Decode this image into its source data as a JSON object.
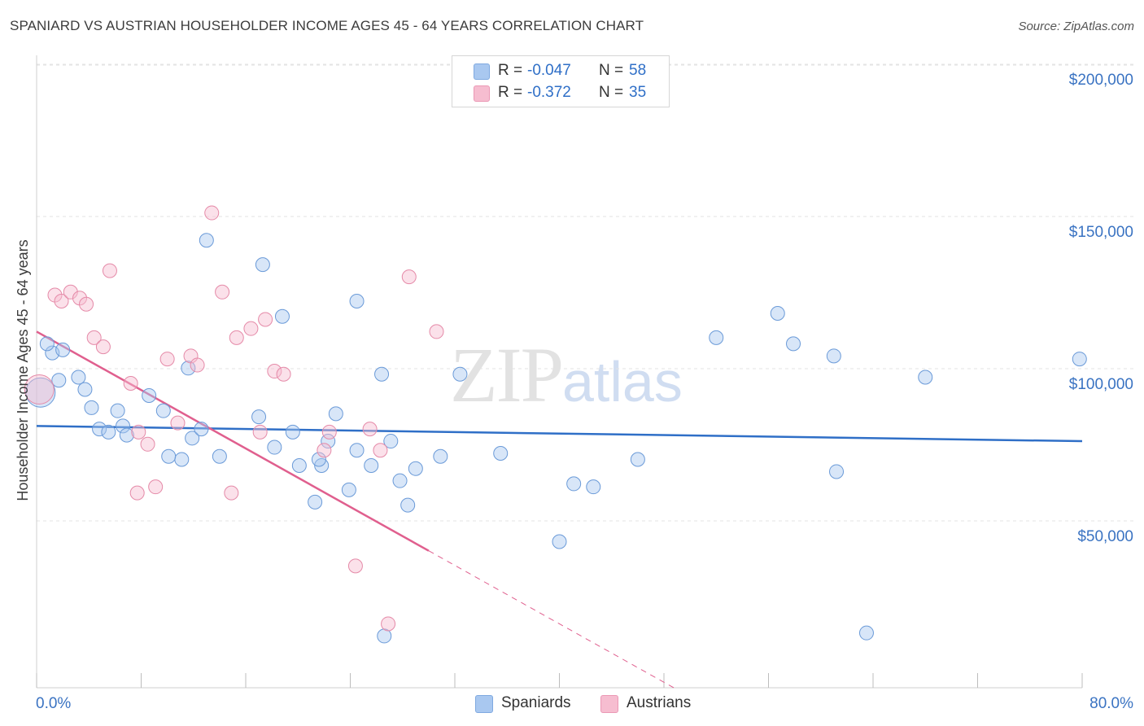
{
  "title": "SPANIARD VS AUSTRIAN HOUSEHOLDER INCOME AGES 45 - 64 YEARS CORRELATION CHART",
  "source": "Source: ZipAtlas.com",
  "watermark": {
    "zip": "ZIP",
    "atlas": "atlas"
  },
  "legend_top": [
    {
      "r_label": "R =",
      "r_value": "-0.047",
      "n_label": "N =",
      "n_value": "58",
      "color": "#a9c8f0"
    },
    {
      "r_label": "R =",
      "r_value": "-0.372",
      "n_label": "N =",
      "n_value": "35",
      "color": "#f6bdd0"
    }
  ],
  "legend_bottom": [
    {
      "label": "Spaniards",
      "color": "#a9c8f0"
    },
    {
      "label": "Austrians",
      "color": "#f6bdd0"
    }
  ],
  "colors": {
    "spaniards_fill": "rgba(169,200,240,0.45)",
    "spaniards_stroke": "#6a9ad8",
    "spaniards_line": "#2f6fc7",
    "austrians_fill": "rgba(246,189,208,0.45)",
    "austrians_stroke": "#e58aa8",
    "austrians_line": "#e05f8e",
    "grid": "#e3e3e3",
    "tick_text": "#3a73c2"
  },
  "chart_data": {
    "type": "scatter",
    "title": "SPANIARD VS AUSTRIAN HOUSEHOLDER INCOME AGES 45 - 64 YEARS CORRELATION CHART",
    "xlabel": "",
    "ylabel": "Householder Income Ages 45 - 64 years",
    "xlim": [
      0,
      80
    ],
    "ylim": [
      0,
      200000
    ],
    "x_tick_labels": [
      "0.0%",
      "80.0%"
    ],
    "y_ticks": [
      50000,
      100000,
      150000,
      200000
    ],
    "y_tick_labels": [
      "$50,000",
      "$100,000",
      "$150,000",
      "$200,000"
    ],
    "grid": true,
    "legend_position": "top-center",
    "series": [
      {
        "name": "Spaniards",
        "trend": {
          "x": [
            0,
            80
          ],
          "y": [
            86000,
            81000
          ],
          "solid_to": 80
        },
        "points": [
          {
            "x": 0.3,
            "y": 97000,
            "big": true
          },
          {
            "x": 1.2,
            "y": 110000
          },
          {
            "x": 0.8,
            "y": 113000
          },
          {
            "x": 2.0,
            "y": 111000
          },
          {
            "x": 1.7,
            "y": 101000
          },
          {
            "x": 3.2,
            "y": 102000
          },
          {
            "x": 3.7,
            "y": 98000
          },
          {
            "x": 4.2,
            "y": 92000
          },
          {
            "x": 4.8,
            "y": 85000
          },
          {
            "x": 5.5,
            "y": 84000
          },
          {
            "x": 6.2,
            "y": 91000
          },
          {
            "x": 6.6,
            "y": 86000
          },
          {
            "x": 6.9,
            "y": 83000
          },
          {
            "x": 8.6,
            "y": 96000
          },
          {
            "x": 9.7,
            "y": 91000
          },
          {
            "x": 11.6,
            "y": 105000
          },
          {
            "x": 11.1,
            "y": 75000
          },
          {
            "x": 11.9,
            "y": 82000
          },
          {
            "x": 12.6,
            "y": 85000
          },
          {
            "x": 14.0,
            "y": 76000
          },
          {
            "x": 10.1,
            "y": 76000
          },
          {
            "x": 13.0,
            "y": 147000
          },
          {
            "x": 17.3,
            "y": 139000
          },
          {
            "x": 17.0,
            "y": 89000
          },
          {
            "x": 18.8,
            "y": 122000
          },
          {
            "x": 19.6,
            "y": 84000
          },
          {
            "x": 18.2,
            "y": 79000
          },
          {
            "x": 20.1,
            "y": 73000
          },
          {
            "x": 21.3,
            "y": 61000
          },
          {
            "x": 21.8,
            "y": 73000
          },
          {
            "x": 22.3,
            "y": 81000
          },
          {
            "x": 22.9,
            "y": 90000
          },
          {
            "x": 24.5,
            "y": 78000
          },
          {
            "x": 23.9,
            "y": 65000
          },
          {
            "x": 25.6,
            "y": 73000
          },
          {
            "x": 24.5,
            "y": 127000
          },
          {
            "x": 26.4,
            "y": 103000
          },
          {
            "x": 27.1,
            "y": 81000
          },
          {
            "x": 27.8,
            "y": 68000
          },
          {
            "x": 29.0,
            "y": 72000
          },
          {
            "x": 28.4,
            "y": 60000
          },
          {
            "x": 30.9,
            "y": 76000
          },
          {
            "x": 32.4,
            "y": 103000
          },
          {
            "x": 35.5,
            "y": 77000
          },
          {
            "x": 40.0,
            "y": 48000
          },
          {
            "x": 41.1,
            "y": 67000
          },
          {
            "x": 42.6,
            "y": 66000
          },
          {
            "x": 46.0,
            "y": 75000
          },
          {
            "x": 52.0,
            "y": 115000
          },
          {
            "x": 57.9,
            "y": 113000
          },
          {
            "x": 56.7,
            "y": 123000
          },
          {
            "x": 61.0,
            "y": 109000
          },
          {
            "x": 61.2,
            "y": 71000
          },
          {
            "x": 68.0,
            "y": 102000
          },
          {
            "x": 63.5,
            "y": 18000
          },
          {
            "x": 26.6,
            "y": 17000
          },
          {
            "x": 21.6,
            "y": 75000
          },
          {
            "x": 79.8,
            "y": 108000
          }
        ]
      },
      {
        "name": "Austrians",
        "trend": {
          "x": [
            0,
            80
          ],
          "y": [
            117000,
            -75000
          ],
          "solid_to": 30
        },
        "points": [
          {
            "x": 0.2,
            "y": 98000,
            "big": true
          },
          {
            "x": 1.4,
            "y": 129000
          },
          {
            "x": 1.9,
            "y": 127000
          },
          {
            "x": 2.6,
            "y": 130000
          },
          {
            "x": 3.3,
            "y": 128000
          },
          {
            "x": 3.8,
            "y": 126000
          },
          {
            "x": 4.4,
            "y": 115000
          },
          {
            "x": 5.1,
            "y": 112000
          },
          {
            "x": 5.6,
            "y": 137000
          },
          {
            "x": 7.2,
            "y": 100000
          },
          {
            "x": 7.8,
            "y": 84000
          },
          {
            "x": 8.5,
            "y": 80000
          },
          {
            "x": 9.1,
            "y": 66000
          },
          {
            "x": 10.0,
            "y": 108000
          },
          {
            "x": 10.8,
            "y": 87000
          },
          {
            "x": 11.8,
            "y": 109000
          },
          {
            "x": 12.3,
            "y": 106000
          },
          {
            "x": 13.4,
            "y": 156000
          },
          {
            "x": 14.2,
            "y": 130000
          },
          {
            "x": 14.9,
            "y": 64000
          },
          {
            "x": 15.3,
            "y": 115000
          },
          {
            "x": 16.4,
            "y": 118000
          },
          {
            "x": 17.1,
            "y": 84000
          },
          {
            "x": 17.5,
            "y": 121000
          },
          {
            "x": 18.2,
            "y": 104000
          },
          {
            "x": 18.9,
            "y": 103000
          },
          {
            "x": 22.0,
            "y": 78000
          },
          {
            "x": 22.4,
            "y": 84000
          },
          {
            "x": 25.5,
            "y": 85000
          },
          {
            "x": 26.3,
            "y": 78000
          },
          {
            "x": 24.4,
            "y": 40000
          },
          {
            "x": 26.9,
            "y": 21000
          },
          {
            "x": 28.5,
            "y": 135000
          },
          {
            "x": 30.6,
            "y": 117000
          },
          {
            "x": 7.7,
            "y": 64000
          }
        ]
      }
    ]
  }
}
